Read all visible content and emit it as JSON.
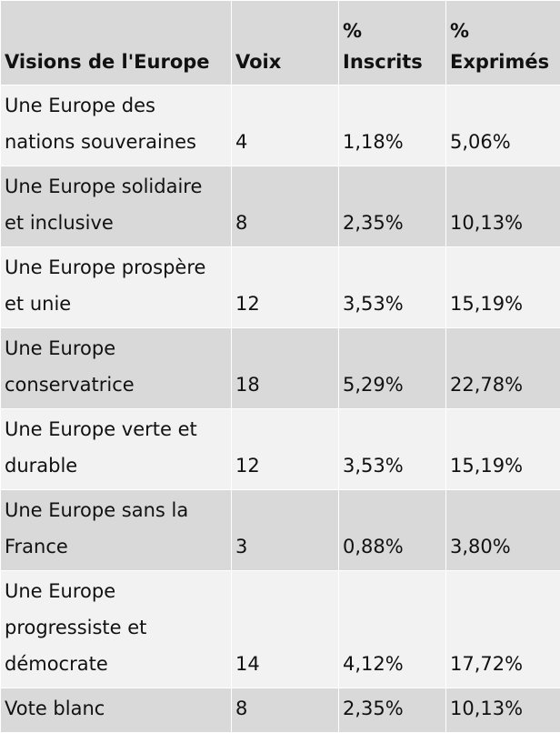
{
  "table": {
    "headers": [
      "Visions de l'Europe",
      "Voix",
      "% Inscrits",
      "% Exprimés"
    ],
    "rows": [
      {
        "vision": "Une Europe des nations souveraines",
        "voix": "4",
        "inscrits": "1,18%",
        "exprimes": "5,06%"
      },
      {
        "vision": "Une Europe solidaire et inclusive",
        "voix": "8",
        "inscrits": "2,35%",
        "exprimes": "10,13%"
      },
      {
        "vision": "Une Europe prospère et unie",
        "voix": "12",
        "inscrits": "3,53%",
        "exprimes": "15,19%"
      },
      {
        "vision": "Une Europe conservatrice",
        "voix": "18",
        "inscrits": "5,29%",
        "exprimes": "22,78%"
      },
      {
        "vision": "Une Europe verte et durable",
        "voix": "12",
        "inscrits": "3,53%",
        "exprimes": "15,19%"
      },
      {
        "vision": "Une Europe sans la France",
        "voix": "3",
        "inscrits": "0,88%",
        "exprimes": "3,80%"
      },
      {
        "vision": "Une Europe progressiste et démocrate",
        "voix": "14",
        "inscrits": "4,12%",
        "exprimes": "17,72%"
      },
      {
        "vision": "Vote blanc",
        "voix": "8",
        "inscrits": "2,35%",
        "exprimes": "10,13%"
      }
    ]
  }
}
